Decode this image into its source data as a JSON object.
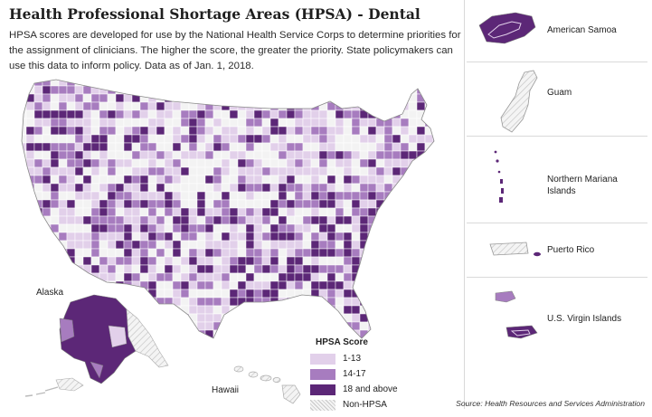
{
  "title": "Health Professional Shortage Areas (HPSA) - Dental",
  "description": "HPSA scores are developed for use by the National Health Service Corps to determine priorities for the assignment of clinicians. The higher the score, the greater the priority. State policymakers can use this data to inform policy. Data as of Jan. 1, 2018.",
  "labels": {
    "alaska": "Alaska",
    "hawaii": "Hawaii"
  },
  "legend": {
    "title": "HPSA Score",
    "items": [
      {
        "label": "1-13",
        "color": "#e2d0ea"
      },
      {
        "label": "14-17",
        "color": "#a77cbf"
      },
      {
        "label": "18 and above",
        "color": "#5c2777"
      },
      {
        "label": "Non-HPSA",
        "color": "hatched"
      }
    ]
  },
  "territories": [
    {
      "name": "American Samoa"
    },
    {
      "name": "Guam"
    },
    {
      "name": "Northern Mariana Islands"
    },
    {
      "name": "Puerto Rico"
    },
    {
      "name": "U.S. Virgin Islands"
    }
  ],
  "source": "Source: Health Resources and Services Administration",
  "colors": {
    "light": "#e2d0ea",
    "mid": "#a77cbf",
    "dark": "#5c2777",
    "nonhpsa": "#f3f3f3",
    "stroke": "#9a9a9a"
  }
}
